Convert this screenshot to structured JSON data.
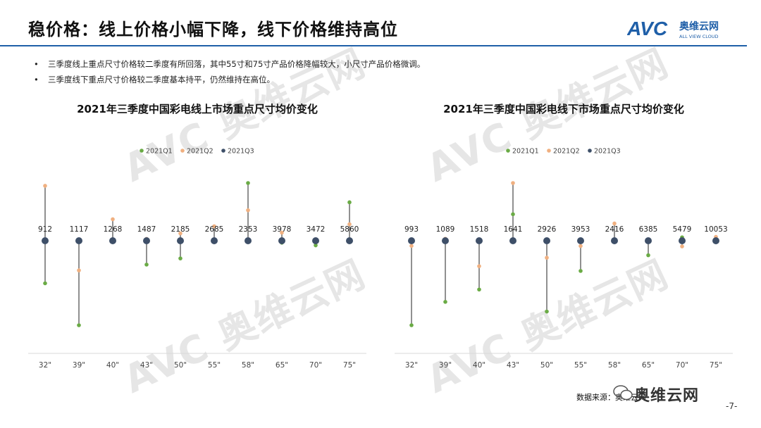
{
  "header": {
    "title": "稳价格：线上价格小幅下降，线下价格维持高位",
    "logo_mark": "AVC",
    "logo_cn": "奥维云网",
    "logo_en": "ALL VIEW CLOUD"
  },
  "colors": {
    "accent": "#1f5fa8",
    "q1": "#6aab45",
    "q2": "#f0b080",
    "q3": "#3e4f68"
  },
  "bullets": [
    "三季度线上重点尺寸价格较二季度有所回落，其中55寸和75寸产品价格降幅较大，小尺寸产品价格微调。",
    "三季度线下重点尺寸价格较二季度基本持平，仍然维持在高位。"
  ],
  "footer": {
    "source": "数据来源：奥维云网",
    "wechat": "奥维云网",
    "page": "-7-"
  },
  "watermark_text": "AVC 奥维云网",
  "chart_data": [
    {
      "type": "scatter",
      "title": "2021年三季度中国彩电线上市场重点尺寸均价变化",
      "categories": [
        "32\"",
        "39\"",
        "40\"",
        "43\"",
        "50\"",
        "55\"",
        "58\"",
        "65\"",
        "70\"",
        "75\""
      ],
      "series": [
        {
          "name": "2021Q1",
          "color": "#6aab45",
          "values": [
            715,
            638,
            1268,
            1307,
            1989,
            2685,
            2597,
            3938,
            3391,
            6265
          ]
        },
        {
          "name": "2021Q2",
          "color": "#f0b080",
          "values": [
            1002,
            949,
            1317,
            1492,
            2214,
            2755,
            2482,
            4036,
            3472,
            6034
          ]
        },
        {
          "name": "2021Q3",
          "color": "#3e4f68",
          "values": [
            912,
            1117,
            1268,
            1487,
            2185,
            2685,
            2353,
            3978,
            3472,
            5860
          ]
        }
      ],
      "legend": "top-center",
      "grid": false
    },
    {
      "type": "scatter",
      "title": "2021年三季度中国彩电线下市场重点尺寸均价变化",
      "categories": [
        "32\"",
        "39\"",
        "40\"",
        "43\"",
        "50\"",
        "55\"",
        "58\"",
        "65\"",
        "70\"",
        "75\""
      ],
      "series": [
        {
          "name": "2021Q1",
          "color": "#6aab45",
          "values": [
            780,
            920,
            1330,
            1760,
            2400,
            3650,
            2420,
            6150,
            5530,
            10020
          ]
        },
        {
          "name": "2021Q2",
          "color": "#f0b080",
          "values": [
            980,
            1095,
            1420,
            1900,
            2800,
            3900,
            2530,
            6380,
            5400,
            10160
          ]
        },
        {
          "name": "2021Q3",
          "color": "#3e4f68",
          "values": [
            993,
            1089,
            1518,
            1641,
            2926,
            3953,
            2416,
            6385,
            5479,
            10053
          ]
        }
      ],
      "legend": "top-center",
      "grid": false
    }
  ]
}
